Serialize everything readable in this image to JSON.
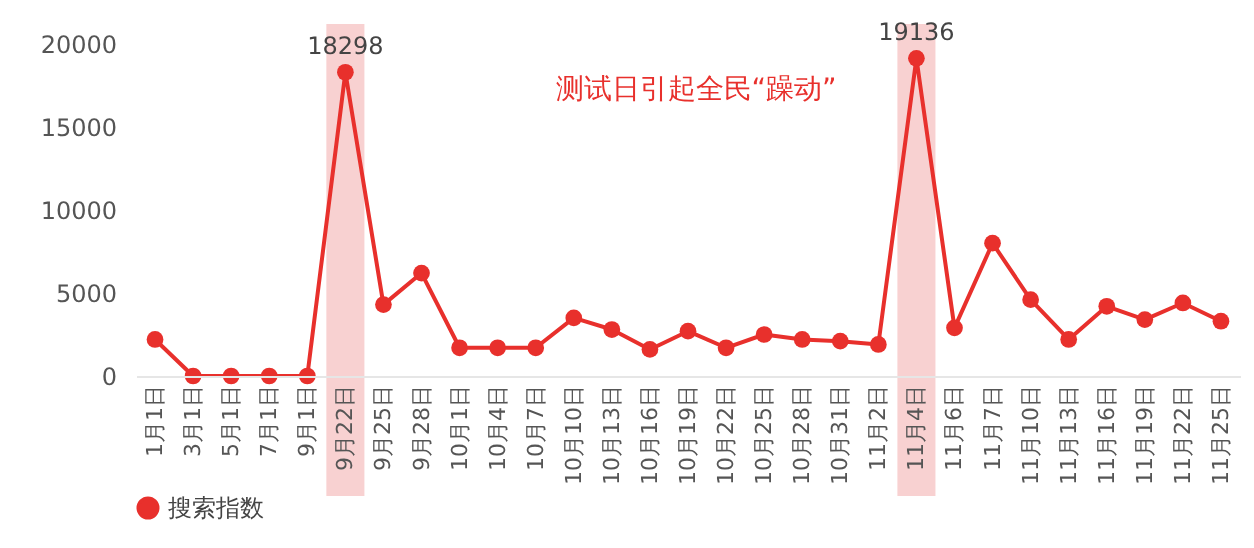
{
  "chart_data": {
    "type": "line",
    "categories": [
      "1月1日",
      "3月1日",
      "5月1日",
      "7月1日",
      "9月1日",
      "9月22日",
      "9月25日",
      "9月28日",
      "10月1日",
      "10月4日",
      "10月7日",
      "10月10日",
      "10月13日",
      "10月16日",
      "10月19日",
      "10月22日",
      "10月25日",
      "10月28日",
      "10月31日",
      "11月2日",
      "11月4日",
      "11月6日",
      "11月7日",
      "11月10日",
      "11月13日",
      "11月16日",
      "11月19日",
      "11月22日",
      "11月25日"
    ],
    "series": [
      {
        "name": "搜索指数",
        "color": "#e8302c",
        "values": [
          2200,
          0,
          0,
          0,
          0,
          18298,
          4300,
          6200,
          1700,
          1700,
          1700,
          3500,
          2800,
          1600,
          2700,
          1700,
          2500,
          2200,
          2100,
          1900,
          19136,
          2900,
          8000,
          4600,
          2200,
          4200,
          3400,
          4400,
          3300
        ],
        "value_labels": [
          null,
          null,
          null,
          null,
          null,
          "18298",
          null,
          null,
          null,
          null,
          null,
          null,
          null,
          null,
          null,
          null,
          null,
          null,
          null,
          null,
          "19136",
          null,
          null,
          null,
          null,
          null,
          null,
          null,
          null
        ]
      }
    ],
    "ylim": [
      0,
      20000
    ],
    "yticks": [
      0,
      5000,
      10000,
      15000,
      20000
    ],
    "bands": [
      {
        "axis": "x",
        "from": "9月22日",
        "to": "9月22日",
        "color": "#f7cccc"
      },
      {
        "axis": "x",
        "from": "11月4日",
        "to": "11月4日",
        "color": "#f7cccc"
      }
    ],
    "annotations": [
      "测试日引起全民“躁动”"
    ],
    "grid": false,
    "legend": "bottom",
    "marker": "circle",
    "line_style": "solid"
  }
}
